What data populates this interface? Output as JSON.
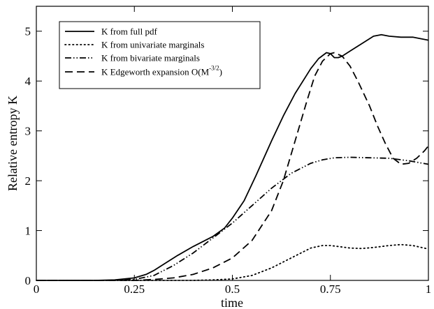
{
  "chart_data": {
    "type": "line",
    "xlabel": "time",
    "ylabel": "Relative entropy K",
    "xlim": [
      0,
      1
    ],
    "ylim": [
      0,
      5.5
    ],
    "xticks": [
      0,
      0.25,
      0.5,
      0.75,
      1
    ],
    "xtick_labels": [
      "0",
      "0.25",
      "0.5",
      "0.75",
      "1"
    ],
    "yticks": [
      0,
      1,
      2,
      3,
      4,
      5
    ],
    "ytick_labels": [
      "0",
      "1",
      "2",
      "3",
      "4",
      "5"
    ],
    "grid": false,
    "legend_position": "top-left",
    "series": [
      {
        "name": "K from full pdf",
        "style": "solid",
        "x": [
          0,
          0.15,
          0.2,
          0.25,
          0.28,
          0.3,
          0.33,
          0.36,
          0.4,
          0.45,
          0.48,
          0.5,
          0.53,
          0.56,
          0.6,
          0.63,
          0.66,
          0.7,
          0.72,
          0.74,
          0.75,
          0.76,
          0.77,
          0.78,
          0.8,
          0.83,
          0.86,
          0.88,
          0.9,
          0.93,
          0.96,
          1.0
        ],
        "y": [
          0,
          0,
          0.01,
          0.05,
          0.12,
          0.2,
          0.35,
          0.5,
          0.68,
          0.88,
          1.05,
          1.25,
          1.6,
          2.1,
          2.8,
          3.3,
          3.75,
          4.25,
          4.45,
          4.57,
          4.55,
          4.47,
          4.47,
          4.5,
          4.6,
          4.75,
          4.9,
          4.93,
          4.9,
          4.88,
          4.88,
          4.82
        ]
      },
      {
        "name": "K from univariate marginals",
        "style": "dotted",
        "x": [
          0,
          0.4,
          0.45,
          0.5,
          0.55,
          0.6,
          0.65,
          0.7,
          0.73,
          0.75,
          0.77,
          0.8,
          0.83,
          0.86,
          0.9,
          0.93,
          0.96,
          1.0
        ],
        "y": [
          0,
          0,
          0.01,
          0.03,
          0.1,
          0.25,
          0.45,
          0.65,
          0.7,
          0.7,
          0.68,
          0.65,
          0.64,
          0.66,
          0.7,
          0.72,
          0.7,
          0.63
        ]
      },
      {
        "name": "K from bivariate marginals",
        "style": "dashdotdot",
        "x": [
          0,
          0.2,
          0.25,
          0.3,
          0.35,
          0.4,
          0.45,
          0.5,
          0.55,
          0.6,
          0.65,
          0.7,
          0.73,
          0.76,
          0.8,
          0.85,
          0.9,
          0.95,
          1.0
        ],
        "y": [
          0,
          0,
          0.02,
          0.1,
          0.3,
          0.55,
          0.85,
          1.15,
          1.5,
          1.85,
          2.15,
          2.35,
          2.42,
          2.46,
          2.47,
          2.46,
          2.45,
          2.4,
          2.33
        ]
      },
      {
        "name": "K Edgeworth expansion O(M⁻³ᐟ²)",
        "style": "dashed",
        "x": [
          0,
          0.25,
          0.3,
          0.35,
          0.4,
          0.45,
          0.5,
          0.55,
          0.6,
          0.63,
          0.66,
          0.69,
          0.71,
          0.73,
          0.75,
          0.76,
          0.78,
          0.8,
          0.82,
          0.85,
          0.87,
          0.89,
          0.91,
          0.93,
          0.95,
          0.97,
          0.99,
          1.0
        ],
        "y": [
          0,
          0,
          0.02,
          0.05,
          0.12,
          0.25,
          0.45,
          0.8,
          1.4,
          2.0,
          2.8,
          3.6,
          4.1,
          4.4,
          4.55,
          4.57,
          4.5,
          4.3,
          4.0,
          3.5,
          3.1,
          2.75,
          2.45,
          2.33,
          2.35,
          2.45,
          2.6,
          2.7
        ]
      }
    ]
  },
  "legend_labels": {
    "full_pdf": "K from full pdf",
    "univariate": "K from univariate marginals",
    "bivariate": "K from bivariate marginals",
    "edgeworth_main": "K Edgeworth expansion O(M",
    "edgeworth_exp": "-3/2",
    "edgeworth_close": ")"
  }
}
